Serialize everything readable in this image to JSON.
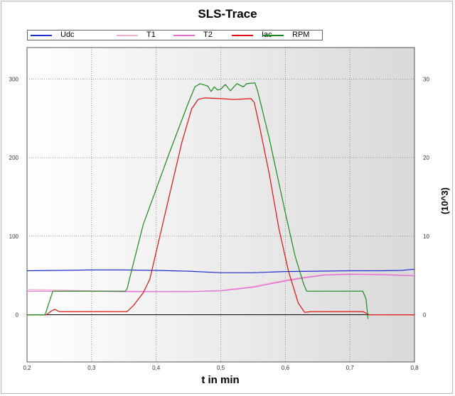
{
  "chart_data": {
    "type": "line",
    "title": "SLS-Trace",
    "xlabel": "t in min",
    "ylabel_right": "(10^3)",
    "xlim": [
      0.2,
      0.8
    ],
    "ylim": [
      -60,
      340
    ],
    "ylim_right": [
      -6,
      34
    ],
    "x_ticks": [
      "0,2",
      "0,3",
      "0,4",
      "0,5",
      "0,6",
      "0,7",
      "0,8"
    ],
    "y_ticks_left": [
      "0",
      "100",
      "200",
      "300"
    ],
    "y_ticks_right": [
      "0",
      "10",
      "20",
      "30"
    ],
    "grid": true,
    "legend_position": "top",
    "series": [
      {
        "name": "Udc",
        "color": "#1a2fd0",
        "points": [
          [
            0.2,
            56
          ],
          [
            0.25,
            56.5
          ],
          [
            0.3,
            57
          ],
          [
            0.35,
            57
          ],
          [
            0.4,
            56.5
          ],
          [
            0.45,
            55.5
          ],
          [
            0.5,
            53.5
          ],
          [
            0.55,
            53.5
          ],
          [
            0.6,
            55
          ],
          [
            0.65,
            55.5
          ],
          [
            0.7,
            56
          ],
          [
            0.75,
            56
          ],
          [
            0.78,
            56.5
          ],
          [
            0.8,
            58
          ]
        ]
      },
      {
        "name": "T1",
        "color": "#f4aaca",
        "points": [
          [
            0.2,
            32
          ],
          [
            0.25,
            31.5
          ],
          [
            0.3,
            30.5
          ],
          [
            0.35,
            30
          ],
          [
            0.4,
            29.5
          ],
          [
            0.45,
            29.5
          ],
          [
            0.5,
            31
          ],
          [
            0.55,
            36
          ],
          [
            0.6,
            44
          ],
          [
            0.63,
            48
          ],
          [
            0.66,
            51
          ],
          [
            0.7,
            52
          ],
          [
            0.75,
            51.5
          ],
          [
            0.8,
            50
          ]
        ]
      },
      {
        "name": "T2",
        "color": "#e06ad8",
        "points": [
          [
            0.2,
            30
          ],
          [
            0.25,
            30
          ],
          [
            0.3,
            30
          ],
          [
            0.35,
            29.5
          ],
          [
            0.4,
            29.5
          ],
          [
            0.45,
            29.5
          ],
          [
            0.5,
            30.5
          ],
          [
            0.55,
            35
          ],
          [
            0.6,
            43
          ],
          [
            0.63,
            47
          ],
          [
            0.66,
            50.5
          ],
          [
            0.7,
            51.5
          ],
          [
            0.75,
            51
          ],
          [
            0.8,
            49.5
          ]
        ]
      },
      {
        "name": "Iac",
        "color": "#dd1111",
        "points": [
          [
            0.2,
            0
          ],
          [
            0.23,
            0
          ],
          [
            0.238,
            5
          ],
          [
            0.243,
            7
          ],
          [
            0.25,
            4
          ],
          [
            0.3,
            4
          ],
          [
            0.355,
            4
          ],
          [
            0.365,
            12
          ],
          [
            0.38,
            28
          ],
          [
            0.39,
            45
          ],
          [
            0.4,
            80
          ],
          [
            0.42,
            150
          ],
          [
            0.44,
            220
          ],
          [
            0.455,
            262
          ],
          [
            0.465,
            274
          ],
          [
            0.475,
            276
          ],
          [
            0.5,
            275
          ],
          [
            0.52,
            274
          ],
          [
            0.547,
            275
          ],
          [
            0.552,
            270
          ],
          [
            0.56,
            240
          ],
          [
            0.575,
            180
          ],
          [
            0.59,
            110
          ],
          [
            0.605,
            55
          ],
          [
            0.62,
            15
          ],
          [
            0.63,
            3
          ],
          [
            0.64,
            4
          ],
          [
            0.7,
            4
          ],
          [
            0.72,
            4
          ],
          [
            0.725,
            2
          ],
          [
            0.73,
            0
          ],
          [
            0.8,
            0
          ]
        ]
      },
      {
        "name": "RPM",
        "color": "#1a8a1a",
        "points": [
          [
            0.2,
            0
          ],
          [
            0.228,
            0
          ],
          [
            0.24,
            3
          ],
          [
            0.245,
            3
          ],
          [
            0.3,
            3
          ],
          [
            0.352,
            3
          ],
          [
            0.355,
            3.3
          ],
          [
            0.36,
            5
          ],
          [
            0.38,
            11.5
          ],
          [
            0.4,
            16
          ],
          [
            0.42,
            20.5
          ],
          [
            0.45,
            27
          ],
          [
            0.46,
            29
          ],
          [
            0.468,
            29.4
          ],
          [
            0.48,
            29.1
          ],
          [
            0.485,
            28.4
          ],
          [
            0.49,
            29
          ],
          [
            0.495,
            28.6
          ],
          [
            0.5,
            28.7
          ],
          [
            0.507,
            29.3
          ],
          [
            0.515,
            28.5
          ],
          [
            0.525,
            29.4
          ],
          [
            0.535,
            29
          ],
          [
            0.54,
            29.4
          ],
          [
            0.553,
            29.5
          ],
          [
            0.557,
            28.5
          ],
          [
            0.575,
            22.5
          ],
          [
            0.6,
            13
          ],
          [
            0.615,
            7.5
          ],
          [
            0.628,
            4
          ],
          [
            0.633,
            3
          ],
          [
            0.66,
            3
          ],
          [
            0.7,
            3
          ],
          [
            0.72,
            3
          ],
          [
            0.725,
            2
          ],
          [
            0.728,
            -0.5
          ]
        ]
      }
    ]
  }
}
